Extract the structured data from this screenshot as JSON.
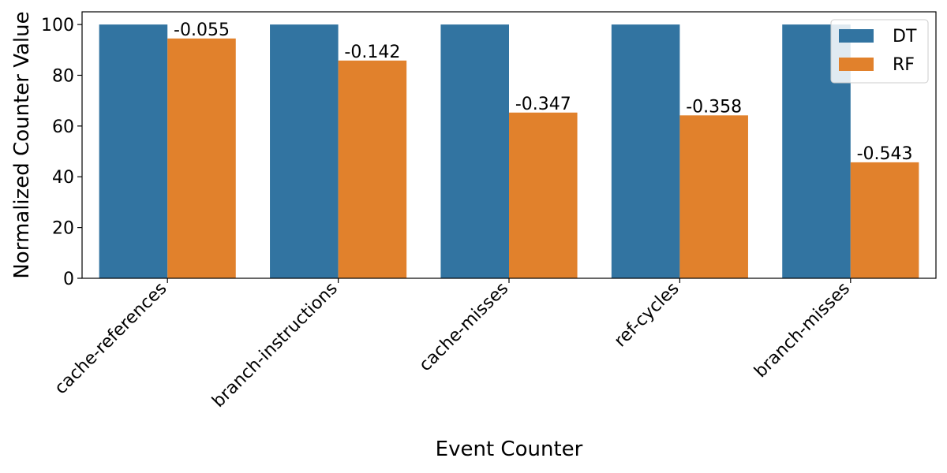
{
  "chart_data": {
    "type": "bar",
    "xlabel": "Event Counter",
    "ylabel": "Normalized Counter Value",
    "categories": [
      "cache-references",
      "branch-instructions",
      "cache-misses",
      "ref-cycles",
      "branch-misses"
    ],
    "series": [
      {
        "name": "DT",
        "color": "#3274a1",
        "values": [
          100,
          100,
          100,
          100,
          100
        ]
      },
      {
        "name": "RF",
        "color": "#e1812c",
        "values": [
          94.5,
          85.8,
          65.3,
          64.2,
          45.7
        ]
      }
    ],
    "data_labels": [
      "-0.055",
      "-0.142",
      "-0.347",
      "-0.358",
      "-0.543"
    ],
    "yticks": [
      0,
      20,
      40,
      60,
      80,
      100
    ],
    "ylim": [
      0,
      105
    ],
    "legend_position": "top-right",
    "grid": false
  }
}
